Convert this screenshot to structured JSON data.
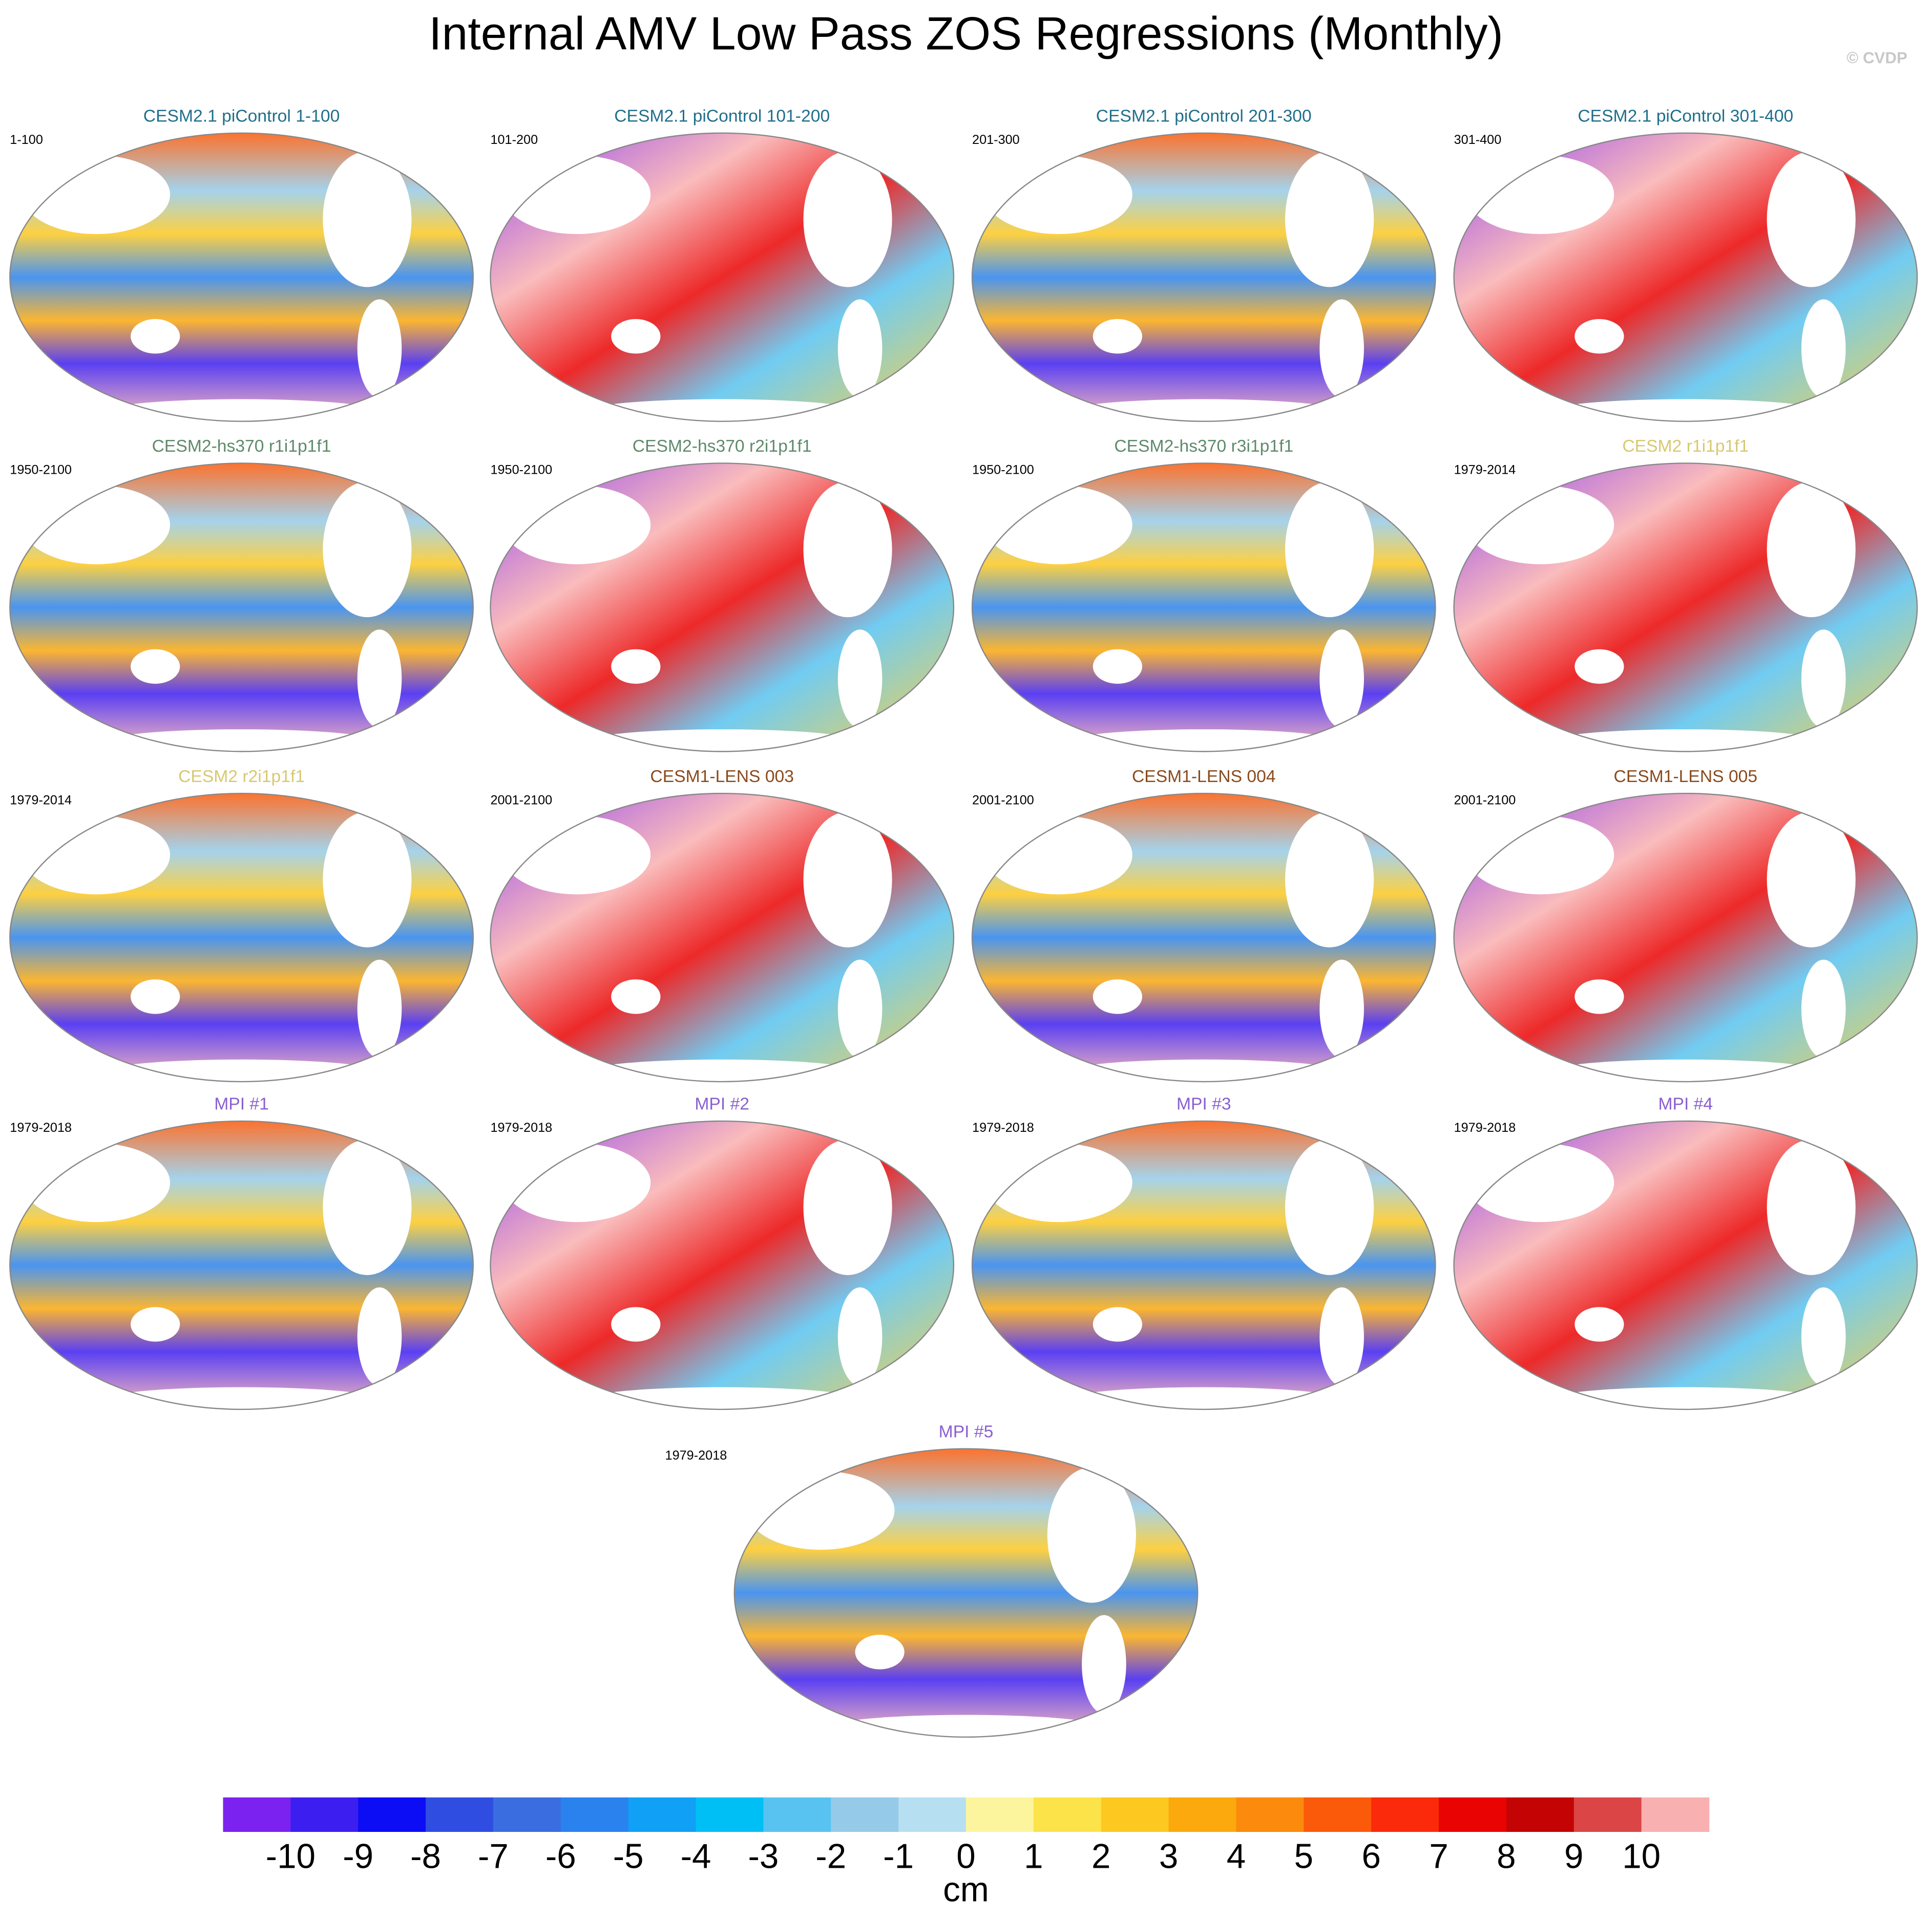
{
  "chart_data": {
    "type": "map",
    "title": "Internal AMV Low Pass ZOS Regressions (Monthly)",
    "watermark": "© CVDP",
    "panels": [
      {
        "title": "CESM2.1 piControl 1-100",
        "period": "1-100",
        "color": "#1f6f8b"
      },
      {
        "title": "CESM2.1 piControl 101-200",
        "period": "101-200",
        "color": "#1f6f8b"
      },
      {
        "title": "CESM2.1 piControl 201-300",
        "period": "201-300",
        "color": "#1f6f8b"
      },
      {
        "title": "CESM2.1 piControl 301-400",
        "period": "301-400",
        "color": "#1f6f8b"
      },
      {
        "title": "CESM2-hs370 r1i1p1f1",
        "period": "1950-2100",
        "color": "#5e8a6a"
      },
      {
        "title": "CESM2-hs370 r2i1p1f1",
        "period": "1950-2100",
        "color": "#5e8a6a"
      },
      {
        "title": "CESM2-hs370 r3i1p1f1",
        "period": "1950-2100",
        "color": "#5e8a6a"
      },
      {
        "title": "CESM2 r1i1p1f1",
        "period": "1979-2014",
        "color": "#d8c870"
      },
      {
        "title": "CESM2 r2i1p1f1",
        "period": "1979-2014",
        "color": "#d8c870"
      },
      {
        "title": "CESM1-LENS 003",
        "period": "2001-2100",
        "color": "#8a4a1c"
      },
      {
        "title": "CESM1-LENS 004",
        "period": "2001-2100",
        "color": "#8a4a1c"
      },
      {
        "title": "CESM1-LENS 005",
        "period": "2001-2100",
        "color": "#8a4a1c"
      },
      {
        "title": "MPI #1",
        "period": "1979-2018",
        "color": "#8a5fcf"
      },
      {
        "title": "MPI #2",
        "period": "1979-2018",
        "color": "#8a5fcf"
      },
      {
        "title": "MPI #3",
        "period": "1979-2018",
        "color": "#8a5fcf"
      },
      {
        "title": "MPI #4",
        "period": "1979-2018",
        "color": "#8a5fcf"
      },
      {
        "title": "MPI #5",
        "period": "1979-2018",
        "color": "#8a5fcf"
      }
    ],
    "colorbar": {
      "label": "cm",
      "levels": [
        -10,
        -9,
        -8,
        -7,
        -6,
        -5,
        -4,
        -3,
        -2,
        -1,
        0,
        1,
        2,
        3,
        4,
        5,
        6,
        7,
        8,
        9,
        10
      ],
      "colors": [
        "#7b22f0",
        "#3d1ef0",
        "#0c0cf5",
        "#2f4de0",
        "#3a6ee0",
        "#2a82ee",
        "#10a0f5",
        "#00bff5",
        "#58c3f0",
        "#95cbe8",
        "#b7dff2",
        "#fdf59d",
        "#fde34a",
        "#fdc820",
        "#fba90c",
        "#fc8a0d",
        "#fb5a0a",
        "#fb2a0a",
        "#ea0303",
        "#c40404",
        "#dc4545",
        "#f9b0b0"
      ]
    }
  }
}
